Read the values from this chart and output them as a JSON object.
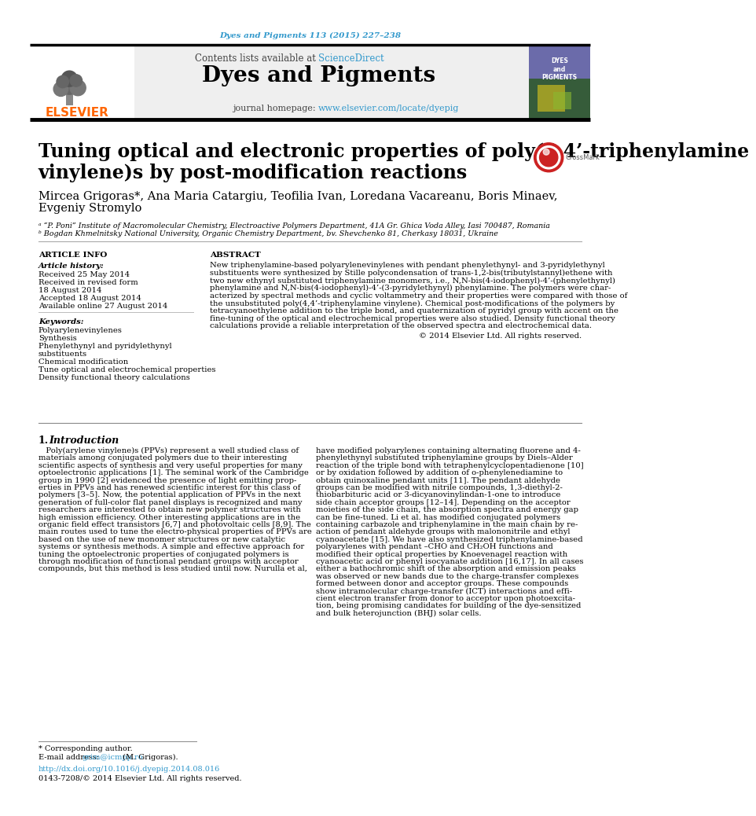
{
  "journal_ref": "Dyes and Pigments 113 (2015) 227–238",
  "journal_ref_color": "#3399cc",
  "journal_name": "Dyes and Pigments",
  "contents_line_plain": "Contents lists available at ",
  "contents_sciencedirect": "ScienceDirect",
  "sciencedirect_color": "#3399cc",
  "journal_homepage_plain": "journal homepage: ",
  "journal_homepage_url": "www.elsevier.com/locate/dyepig",
  "journal_homepage_url_color": "#3399cc",
  "title_line1": "Tuning optical and electronic properties of poly(4,4’-triphenylamine",
  "title_line2": "vinylene)s by post-modification reactions",
  "authors_line1": "Mircea Grigoras*, Ana Maria Catargiu, Teofilia Ivan, Loredana Vacareanu, Boris Minaev,",
  "authors_line2": "Evgeniy Stromylo",
  "affil_a": "ᵃ “P. Poni” Institute of Macromolecular Chemistry, Electroactive Polymers Department, 41A Gr. Ghica Voda Alley, Iasi 700487, Romania",
  "affil_b": "ᵇ Bogdan Khmelnitsky National University, Organic Chemistry Department, bv. Shevchenko 81, Cherkasy 18031, Ukraine",
  "article_info_title": "ARTICLE INFO",
  "article_history_title": "Article history:",
  "received": "Received 25 May 2014",
  "received_revised1": "Received in revised form",
  "received_revised2": "18 August 2014",
  "accepted": "Accepted 18 August 2014",
  "available": "Available online 27 August 2014",
  "keywords_title": "Keywords:",
  "keywords": [
    "Polyarylenevinylenes",
    "Synthesis",
    "Phenylethynyl and pyridylethynyl",
    "substituents",
    "Chemical modification",
    "Tune optical and electrochemical properties",
    "Density functional theory calculations"
  ],
  "abstract_title": "ABSTRACT",
  "abstract_lines": [
    "New triphenylamine-based polyarylenevinylenes with pendant phenylethynyl- and 3-pyridylethynyl",
    "substituents were synthesized by Stille polycondensation of trans-1,2-bis(tributylstannyl)ethene with",
    "two new ethynyl substituted triphenylamine monomers, i.e., N,N-bis(4-iodophenyl)-4’-(phenylethynyl)",
    "phenylamine and N,N-bis(4-iodophenyl)-4’-(3-pyridylethynyl) phenylamine. The polymers were char-",
    "acterized by spectral methods and cyclic voltammetry and their properties were compared with those of",
    "the unsubstituted poly(4,4’-triphenylamine vinylene). Chemical post-modifications of the polymers by",
    "tetracyanoethylene addition to the triple bond, and quaternization of pyridyl group with accent on the",
    "fine-tuning of the optical and electrochemical properties were also studied. Density functional theory",
    "calculations provide a reliable interpretation of the observed spectra and electrochemical data."
  ],
  "copyright": "© 2014 Elsevier Ltd. All rights reserved.",
  "section1_num": "1.",
  "section1_title": "Introduction",
  "intro_col1_lines": [
    "   Poly(arylene vinylene)s (PPVs) represent a well studied class of",
    "materials among conjugated polymers due to their interesting",
    "scientific aspects of synthesis and very useful properties for many",
    "optoelectronic applications [1]. The seminal work of the Cambridge",
    "group in 1990 [2] evidenced the presence of light emitting prop-",
    "erties in PPVs and has renewed scientific interest for this class of",
    "polymers [3–5]. Now, the potential application of PPVs in the next",
    "generation of full-color flat panel displays is recognized and many",
    "researchers are interested to obtain new polymer structures with",
    "high emission efficiency. Other interesting applications are in the",
    "organic field effect transistors [6,7] and photovoltaic cells [8,9]. The",
    "main routes used to tune the electro-physical properties of PPVs are",
    "based on the use of new monomer structures or new catalytic",
    "systems or synthesis methods. A simple and effective approach for",
    "tuning the optoelectronic properties of conjugated polymers is",
    "through modification of functional pendant groups with acceptor",
    "compounds, but this method is less studied until now. Nurulla et al,"
  ],
  "intro_col2_lines": [
    "have modified polyarylenes containing alternating fluorene and 4-",
    "phenylethynyl substituted triphenylamine groups by Diels–Alder",
    "reaction of the triple bond with tetraphenylcyclopentadienone [10]",
    "or by oxidation followed by addition of o-phenylenediamine to",
    "obtain quinoxaline pendant units [11]. The pendant aldehyde",
    "groups can be modified with nitrile compounds, 1,3-diethyl-2-",
    "thiobarbituric acid or 3-dicyanovinylindan-1-one to introduce",
    "side chain acceptor groups [12–14]. Depending on the acceptor",
    "moieties of the side chain, the absorption spectra and energy gap",
    "can be fine-tuned. Li et al. has modified conjugated polymers",
    "containing carbazole and triphenylamine in the main chain by re-",
    "action of pendant aldehyde groups with malononitrile and ethyl",
    "cyanoacetate [15]. We have also synthesized triphenylamine-based",
    "polyarylenes with pendant –CHO and CH₂OH functions and",
    "modified their optical properties by Knoevenagel reaction with",
    "cyanoacetic acid or phenyl isocyanate addition [16,17]. In all cases",
    "either a bathochromic shift of the absorption and emission peaks",
    "was observed or new bands due to the charge-transfer complexes",
    "formed between donor and acceptor groups. These compounds",
    "show intramolecular charge-transfer (ICT) interactions and effi-",
    "cient electron transfer from donor to acceptor upon photoexcita-",
    "tion, being promising candidates for building of the dye-sensitized",
    "and bulk heterojunction (BHJ) solar cells."
  ],
  "footnote_star": "* Corresponding author.",
  "footnote_email_plain": "E-mail address: ",
  "footnote_email_url": "grim@icmpp.ro",
  "footnote_email_suffix": " (M. Grigoras).",
  "footnote_email_color": "#3399cc",
  "doi_line": "http://dx.doi.org/10.1016/j.dyepig.2014.08.016",
  "doi_color": "#3399cc",
  "issn_line": "0143-7208/© 2014 Elsevier Ltd. All rights reserved.",
  "bg_color": "#ffffff",
  "elsevier_orange": "#ff6600",
  "cover_bg": "#6b6baa",
  "cover_text": "DYES\nand\nPIGMENTS"
}
